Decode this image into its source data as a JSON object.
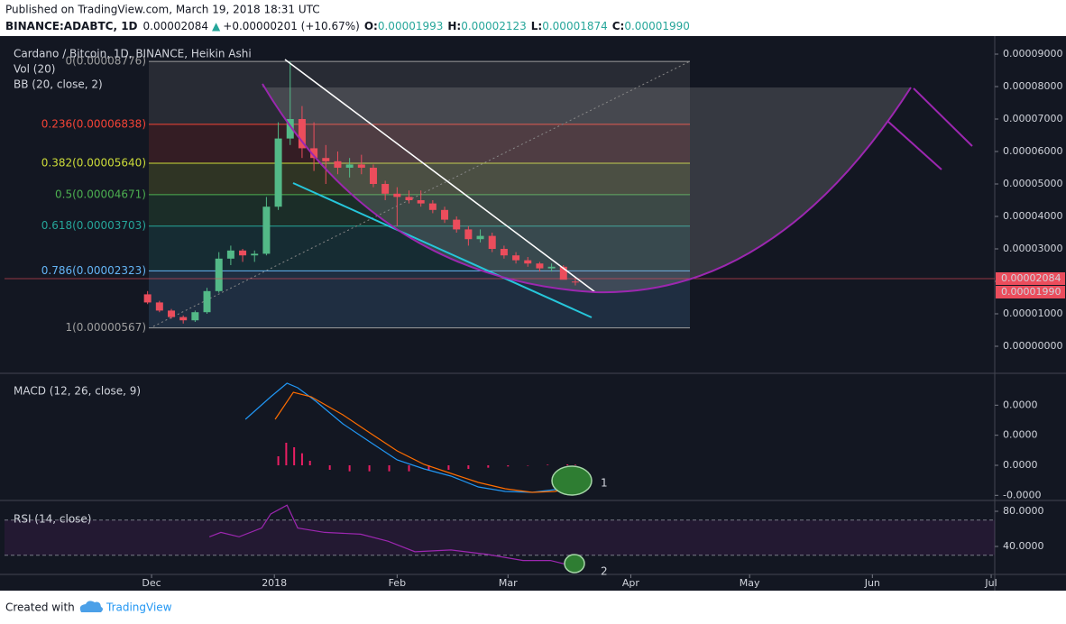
{
  "header": {
    "published": "Published on TradingView.com, March 19, 2018 18:31 UTC",
    "symbol": "BINANCE:ADABTC, 1D",
    "last": "0.00002084",
    "arrow": "▲",
    "change": "+0.00000201 (+10.67%)",
    "ohlc": [
      {
        "label": "O:",
        "value": "0.00001993"
      },
      {
        "label": "H:",
        "value": "0.00002123"
      },
      {
        "label": "L:",
        "value": "0.00001874"
      },
      {
        "label": "C:",
        "value": "0.00001990"
      }
    ]
  },
  "footer": {
    "created": "Created with",
    "brand": "TradingView"
  },
  "chart_data": [
    {
      "type": "candlestick",
      "title": "Cardano / Bitcoin, 1D, BINANCE, Heikin Ashi",
      "indicators": [
        "Vol (20)",
        "BB (20, close, 2)"
      ],
      "up_color": "#53b987",
      "down_color": "#eb4d5c",
      "xlim": [
        -37.13,
        212.9
      ],
      "xticks": [
        {
          "value": 0,
          "label": "Dec"
        },
        {
          "value": 31,
          "label": "2018"
        },
        {
          "value": 62,
          "label": "Feb"
        },
        {
          "value": 90,
          "label": "Mar"
        },
        {
          "value": 121,
          "label": "Apr"
        },
        {
          "value": 151,
          "label": "May"
        },
        {
          "value": 182,
          "label": "Jun"
        },
        {
          "value": 212,
          "label": "Jul"
        }
      ],
      "ylim": [
        -8.33e-06,
        9.556e-05
      ],
      "yticks": [
        {
          "value": 0,
          "label": "0.00000000"
        },
        {
          "value": 1e-05,
          "label": "0.00001000"
        },
        {
          "value": 2e-05,
          "label": "0.00002000"
        },
        {
          "value": 3e-05,
          "label": "0.00003000"
        },
        {
          "value": 4e-05,
          "label": "0.00004000"
        },
        {
          "value": 5e-05,
          "label": "0.00005000"
        },
        {
          "value": 6e-05,
          "label": "0.00006000"
        },
        {
          "value": 7e-05,
          "label": "0.00007000"
        },
        {
          "value": 8e-05,
          "label": "0.00008000"
        },
        {
          "value": 9e-05,
          "label": "0.00009000"
        }
      ],
      "fib_levels": [
        {
          "value": 8.776e-05,
          "label": "0(0.00008776)",
          "color": "#9e9e9e"
        },
        {
          "value": 6.838e-05,
          "label": "0.236(0.00006838)",
          "color": "#f44336"
        },
        {
          "value": 5.64e-05,
          "label": "0.382(0.00005640)",
          "color": "#cddc39"
        },
        {
          "value": 4.671e-05,
          "label": "0.5(0.00004671)",
          "color": "#4caf50"
        },
        {
          "value": 3.703e-05,
          "label": "0.618(0.00003703)",
          "color": "#26a69a"
        },
        {
          "value": 2.323e-05,
          "label": "0.786(0.00002323)",
          "color": "#64b5f6"
        },
        {
          "value": 5.67e-06,
          "label": "1(0.00000567)",
          "color": "#9e9e9e"
        }
      ],
      "price_labels": [
        {
          "value": 2.084e-05,
          "label": "0.00002084"
        },
        {
          "value": 1.99e-05,
          "label": "0.00001990"
        }
      ],
      "x": [
        -1,
        2,
        5,
        8,
        11,
        14,
        17,
        20,
        23,
        26,
        29,
        32,
        35,
        38,
        41,
        44,
        47,
        50,
        53,
        56,
        59,
        62,
        65,
        68,
        71,
        74,
        77,
        80,
        83,
        86,
        89,
        92,
        95,
        98,
        101,
        104,
        107
      ],
      "open": [
        1.6e-05,
        1.35e-05,
        1.1e-05,
        9e-06,
        8e-06,
        1.05e-05,
        1.7e-05,
        2.7e-05,
        2.95e-05,
        2.8e-05,
        2.85e-05,
        4.3e-05,
        6.4e-05,
        7e-05,
        6.1e-05,
        5.8e-05,
        5.7e-05,
        5.5e-05,
        5.6e-05,
        5.5e-05,
        5e-05,
        4.7e-05,
        4.6e-05,
        4.5e-05,
        4.4e-05,
        4.2e-05,
        3.9e-05,
        3.6e-05,
        3.3e-05,
        3.4e-05,
        3e-05,
        2.8e-05,
        2.65e-05,
        2.55e-05,
        2.4e-05,
        2.45e-05,
        1.993e-05
      ],
      "high": [
        1.7e-05,
        1.4e-05,
        1.15e-05,
        9.5e-06,
        1.1e-05,
        1.8e-05,
        2.9e-05,
        3.1e-05,
        3e-05,
        2.95e-05,
        4.6e-05,
        6.9e-05,
        8.776e-05,
        7.4e-05,
        6.9e-05,
        6.2e-05,
        6e-05,
        5.8e-05,
        5.9e-05,
        5.6e-05,
        5.1e-05,
        4.9e-05,
        4.8e-05,
        4.8e-05,
        4.5e-05,
        4.3e-05,
        4e-05,
        3.7e-05,
        3.6e-05,
        3.5e-05,
        3.1e-05,
        2.9e-05,
        2.75e-05,
        2.6e-05,
        2.55e-05,
        2.5e-05,
        2.123e-05
      ],
      "low": [
        1.3e-05,
        1.05e-05,
        8.5e-06,
        7e-06,
        7.5e-06,
        1e-05,
        1.65e-05,
        2.5e-05,
        2.6e-05,
        2.6e-05,
        2.8e-05,
        4.2e-05,
        6.2e-05,
        5.8e-05,
        5.4e-05,
        5e-05,
        5.3e-05,
        5.2e-05,
        5.3e-05,
        4.9e-05,
        4.5e-05,
        3.7e-05,
        4.4e-05,
        4.3e-05,
        4.1e-05,
        3.8e-05,
        3.5e-05,
        3.1e-05,
        3.2e-05,
        2.9e-05,
        2.7e-05,
        2.55e-05,
        2.45e-05,
        2.3e-05,
        2.3e-05,
        2.1e-05,
        1.874e-05
      ],
      "close": [
        1.35e-05,
        1.1e-05,
        9e-06,
        8e-06,
        1.05e-05,
        1.7e-05,
        2.7e-05,
        2.95e-05,
        2.8e-05,
        2.85e-05,
        4.3e-05,
        6.4e-05,
        7e-05,
        6.1e-05,
        5.8e-05,
        5.7e-05,
        5.5e-05,
        5.6e-05,
        5.5e-05,
        5e-05,
        4.7e-05,
        4.6e-05,
        4.5e-05,
        4.4e-05,
        4.2e-05,
        3.9e-05,
        3.6e-05,
        3.3e-05,
        3.4e-05,
        3e-05,
        2.8e-05,
        2.65e-05,
        2.55e-05,
        2.4e-05,
        2.45e-05,
        2.05e-05,
        1.99e-05
      ]
    },
    {
      "type": "line",
      "title": "MACD (12, 26, close, 9)",
      "ylim": [
        -1.14e-05,
        3.06e-05
      ],
      "yticks": [
        {
          "value": 2e-05,
          "label": "0.0000"
        },
        {
          "value": 1e-05,
          "label": "0.0000"
        },
        {
          "value": 0,
          "label": "0.0000"
        },
        {
          "value": -1e-05,
          "label": "-0.0000"
        }
      ],
      "annotations": [
        "1"
      ],
      "series": [
        {
          "type": "bar",
          "color": "#e91e63",
          "x": [
            32,
            34,
            36,
            38,
            40,
            45,
            50,
            55,
            60,
            65,
            70,
            75,
            80,
            85,
            90,
            95,
            100,
            105,
            107
          ],
          "values": [
            3e-06,
            7.5e-06,
            6e-06,
            4e-06,
            1.5e-06,
            -1.5e-06,
            -2e-06,
            -2e-06,
            -2e-06,
            -2e-06,
            -1.8e-06,
            -1.5e-06,
            -1.2e-06,
            -8e-07,
            -4e-07,
            0,
            2e-07,
            3e-07,
            2e-07
          ]
        },
        {
          "color": "#2196f3",
          "x": [
            23.7,
            30.1,
            34.2,
            36.9,
            41.5,
            48.3,
            55.1,
            62,
            68.8,
            75.6,
            82.5,
            89.3,
            96.1,
            101.8,
            107.5
          ],
          "values": [
            1.53e-05,
            2.28e-05,
            2.73e-05,
            2.58e-05,
            2.13e-05,
            1.38e-05,
            7.8e-06,
            1.8e-06,
            -1.2e-06,
            -3.6e-06,
            -7.2e-06,
            -8.7e-06,
            -9e-06,
            -8.1e-06,
            -7.2e-06
          ]
        },
        {
          "color": "#ff6d00",
          "x": [
            31.2,
            35.8,
            40.3,
            48.3,
            55.1,
            62,
            68.8,
            75.6,
            82.5,
            89.3,
            96.1,
            101.8,
            107.5
          ],
          "values": [
            1.53e-05,
            2.43e-05,
            2.28e-05,
            1.68e-05,
            1.08e-05,
            4.8e-06,
            3e-07,
            -2.7e-06,
            -5.7e-06,
            -7.8e-06,
            -9e-06,
            -8.7e-06,
            -7.2e-06
          ]
        }
      ]
    },
    {
      "type": "line",
      "title": "RSI (14, close)",
      "ylim": [
        8.2,
        91.3
      ],
      "band": [
        30,
        70
      ],
      "yticks": [
        {
          "value": 80,
          "label": "80.0000"
        },
        {
          "value": 40,
          "label": "40.0000"
        }
      ],
      "annotations": [
        "2"
      ],
      "series": [
        {
          "color": "#9c27b0",
          "x": [
            14.6,
            17.5,
            22.1,
            27.8,
            30.1,
            34.2,
            36.9,
            43.7,
            52.8,
            59.7,
            66.5,
            75.6,
            84.7,
            93.8,
            100.7,
            107.1
          ],
          "values": [
            51,
            56,
            51,
            61,
            77,
            87,
            61,
            56,
            54,
            46,
            34,
            36,
            31,
            24,
            24,
            17
          ]
        }
      ]
    }
  ]
}
